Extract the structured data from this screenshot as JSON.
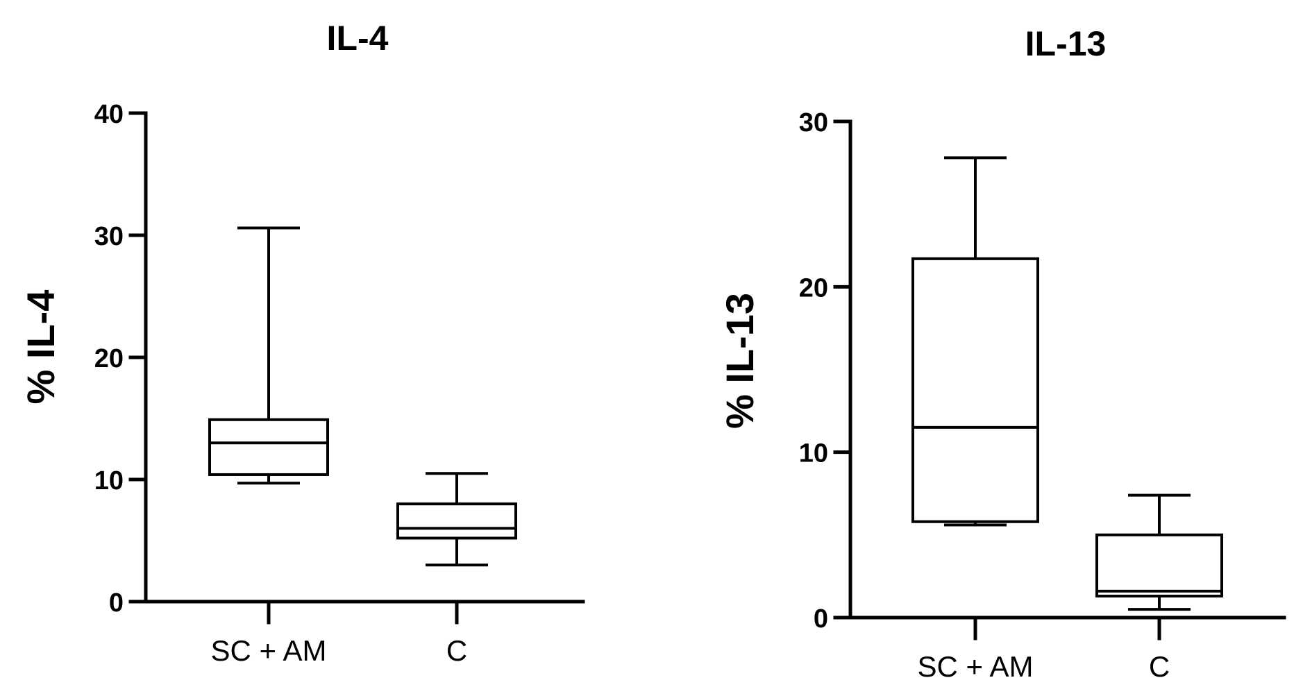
{
  "chart_data": [
    {
      "type": "box",
      "title": "IL-4",
      "ylabel": "% IL-4",
      "xlabel": "",
      "ylim": [
        0,
        40
      ],
      "yticks": [
        0,
        10,
        20,
        30,
        40
      ],
      "categories": [
        "SC + AM",
        "C"
      ],
      "grid": false,
      "series": [
        {
          "boxes": [
            {
              "category": "SC + AM",
              "min": 9.7,
              "q1": 10.4,
              "median": 13.0,
              "q3": 14.9,
              "max": 30.6
            },
            {
              "category": "C",
              "min": 3.0,
              "q1": 5.2,
              "median": 6.0,
              "q3": 8.0,
              "max": 10.5
            }
          ]
        }
      ]
    },
    {
      "type": "box",
      "title": "IL-13",
      "ylabel": "% IL-13",
      "xlabel": "",
      "ylim": [
        0,
        30
      ],
      "yticks": [
        0,
        10,
        20,
        30
      ],
      "categories": [
        "SC + AM",
        "C"
      ],
      "grid": false,
      "series": [
        {
          "boxes": [
            {
              "category": "SC + AM",
              "min": 5.6,
              "q1": 5.8,
              "median": 11.5,
              "q3": 21.7,
              "max": 27.8
            },
            {
              "category": "C",
              "min": 0.5,
              "q1": 1.3,
              "median": 1.6,
              "q3": 5.0,
              "max": 7.4
            }
          ]
        }
      ]
    }
  ]
}
